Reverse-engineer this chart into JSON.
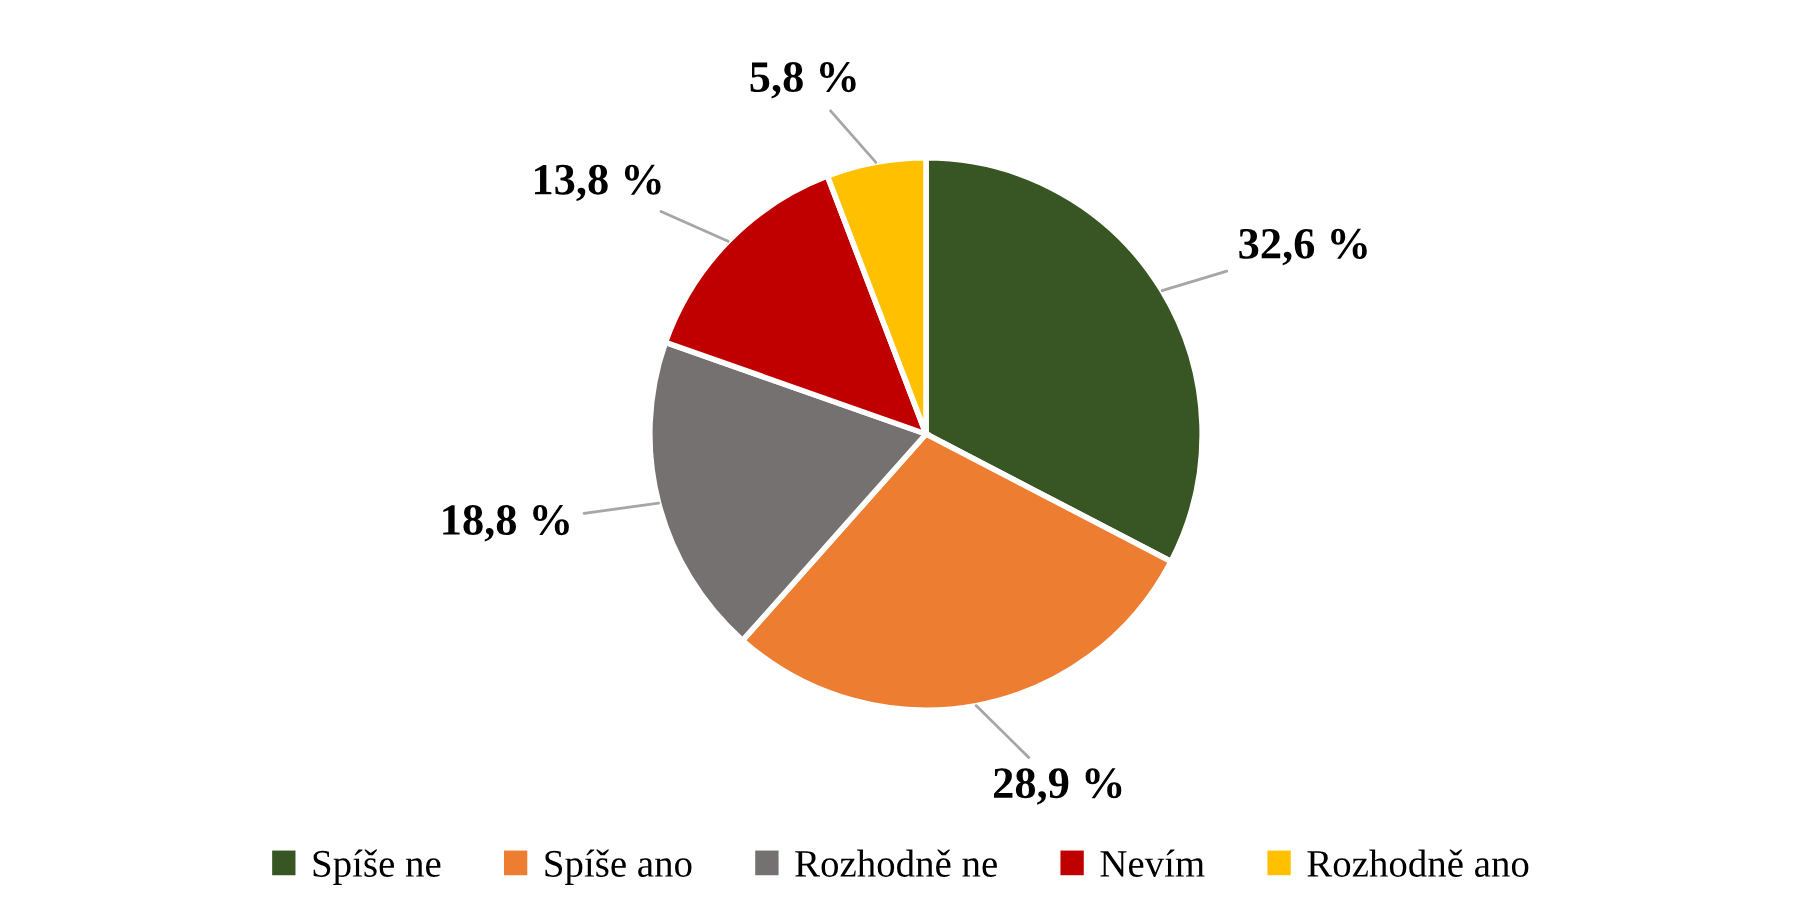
{
  "chart_data": {
    "type": "pie",
    "categories": [
      "Spíše ne",
      "Spíše ano",
      "Rozhodně ne",
      "Nevím",
      "Rozhodně ano"
    ],
    "values": [
      32.6,
      28.9,
      18.8,
      13.8,
      5.8
    ],
    "colors": [
      "#375623",
      "#ed7d31",
      "#767171",
      "#c00000",
      "#ffc000"
    ],
    "value_labels": [
      "32,6 %",
      "28,9 %",
      "18,8 %",
      "13,8 %",
      "5,8 %"
    ],
    "legend": "bottom"
  }
}
